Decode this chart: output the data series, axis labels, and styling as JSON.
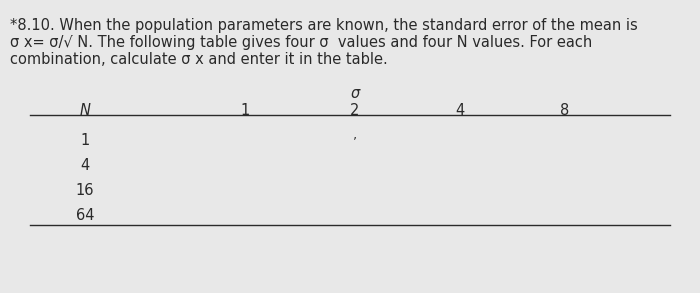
{
  "title_line1": "*8.10. When the population parameters are known, the standard error of the mean is",
  "title_line2": "σ x= σ/√ N. The following table gives four σ  values and four N values. For each",
  "title_line3": "combination, calculate σ x and enter it in the table.",
  "sigma_label": "σ",
  "col_header": [
    "N",
    "1",
    "2",
    "4",
    "8"
  ],
  "row_labels": [
    "1",
    "4",
    "16",
    "64"
  ],
  "dot_row": 0,
  "dot_col": 2,
  "background_color": "#e8e8e8",
  "text_color": "#2a2a2a",
  "title_fontsize": 10.5,
  "body_fontsize": 10.5
}
